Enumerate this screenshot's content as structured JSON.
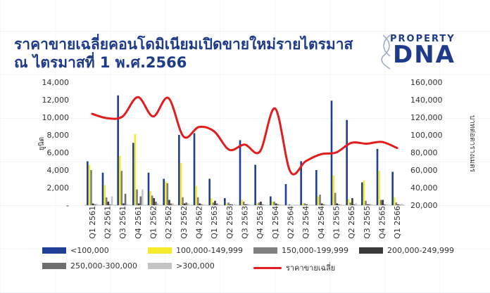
{
  "title_line1": "ราคาขายเฉลี่ยคอนโดมิเนียมเปิดขายใหม่รายไตรมาส",
  "title_line2": "ณ ไตรมาสที่ 1 พ.ศ.2566",
  "logo": {
    "top": "PROPERTY",
    "main": "DNA"
  },
  "chart_data": {
    "type": "bar",
    "title": "ราคาขายเฉลี่ยคอนโดมิเนียมเปิดขายใหม่รายไตรมาส ณ ไตรมาสที่ 1 พ.ศ.2566",
    "ylabel": "ยูนิต",
    "y2label": "บาทต่อตารางเมตร",
    "ylim": [
      0,
      14000
    ],
    "y2lim": [
      20000,
      160000
    ],
    "yticks": [
      "-",
      "2,000",
      "4,000",
      "6,000",
      "8,000",
      "10,000",
      "12,000",
      "14,000"
    ],
    "y2ticks": [
      "20,000",
      "40,000",
      "60,000",
      "80,000",
      "100,000",
      "120,000",
      "140,000",
      "160,000"
    ],
    "categories": [
      "Q1 2561",
      "Q2 2561",
      "Q3 2561",
      "Q4 2561",
      "Q1 2562",
      "Q2 2562",
      "Q3 2562",
      "Q4 2562",
      "Q1 2563",
      "Q2 2563",
      "Q3 2563",
      "Q4 2563",
      "Q1 2564",
      "Q2 2564",
      "Q3 2564",
      "Q4 2564",
      "Q1 2565",
      "Q2 2565",
      "Q3 2565",
      "Q4 2565",
      "Q1 2566"
    ],
    "series": [
      {
        "name": "<100,000",
        "color": "#1f3f94",
        "values": [
          5000,
          3700,
          12500,
          7100,
          3700,
          3000,
          8000,
          8200,
          3000,
          800,
          7400,
          4600,
          1000,
          2400,
          5000,
          4000,
          11900,
          9700,
          2600,
          6400,
          3800
        ]
      },
      {
        "name": "100,000-149,999",
        "color": "#f5eb2a",
        "values": [
          4600,
          2300,
          5600,
          8100,
          1600,
          2700,
          4800,
          2200,
          800,
          200,
          600,
          200,
          400,
          0,
          200,
          1000,
          3400,
          700,
          2800,
          3900,
          900
        ]
      },
      {
        "name": "150,000-199,999",
        "color": "#808080",
        "values": [
          4000,
          900,
          3900,
          1800,
          1100,
          2500,
          900,
          900,
          300,
          300,
          400,
          300,
          400,
          100,
          200,
          1200,
          1400,
          300,
          500,
          600,
          300
        ]
      },
      {
        "name": "200,000-249,999",
        "color": "#3a3a3a",
        "values": [
          200,
          400,
          200,
          200,
          800,
          600,
          200,
          200,
          500,
          100,
          100,
          400,
          200,
          0,
          100,
          200,
          200,
          800,
          100,
          600,
          100
        ]
      },
      {
        "name": "250,000-300,000",
        "color": "#6e6e6e",
        "values": [
          100,
          100,
          1300,
          1000,
          400,
          200,
          300,
          100,
          200,
          100,
          100,
          100,
          100,
          0,
          0,
          100,
          100,
          100,
          100,
          100,
          50
        ]
      },
      {
        "name": ">300,000",
        "color": "#c4c4c4",
        "values": [
          150,
          1000,
          100,
          1800,
          200,
          200,
          200,
          100,
          100,
          100,
          100,
          100,
          100,
          0,
          0,
          100,
          100,
          200,
          100,
          100,
          150
        ]
      }
    ],
    "line": {
      "name": "ราคาขายเฉลี่ย",
      "color": "#e11d1d",
      "axis": "right",
      "values": [
        124000,
        119000,
        121000,
        143000,
        121000,
        142000,
        98000,
        109000,
        104000,
        83000,
        89000,
        81000,
        130000,
        58000,
        70000,
        78000,
        80000,
        91000,
        90000,
        92000,
        85000
      ]
    },
    "legend_position": "bottom",
    "grid": false
  }
}
